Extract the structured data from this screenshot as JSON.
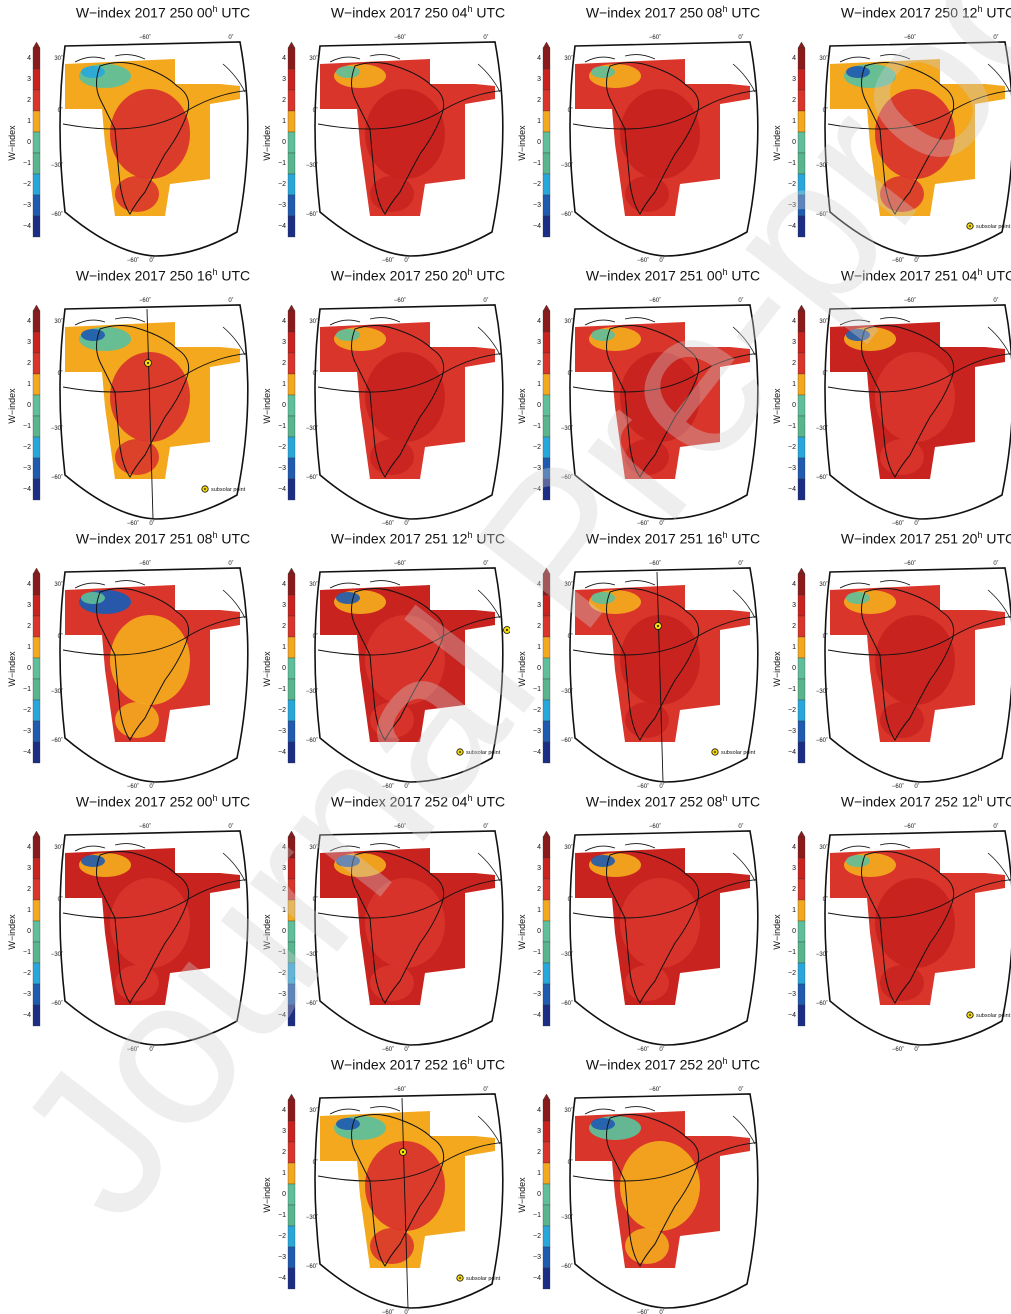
{
  "title_prefix": "W−index",
  "colorbar": {
    "label": "W−index",
    "ticks": [
      "4",
      "3",
      "2",
      "1",
      "0",
      "−1",
      "−2",
      "−3",
      "−4"
    ],
    "colors": [
      "#8b1a1a",
      "#c8231f",
      "#d9352b",
      "#f3a81e",
      "#5fbf9a",
      "#58b58e",
      "#28a7dd",
      "#1f5bb0",
      "#1c2d85"
    ]
  },
  "map_labels": {
    "lat": [
      "30˚",
      "0˚",
      "−30˚",
      "−60˚"
    ],
    "lon_top": [
      "−60˚",
      "0˚"
    ],
    "lon_bottom": [
      "−60˚",
      "0˚"
    ]
  },
  "subsolar_label": "subsolar point",
  "watermark": "Journal Pre-proof",
  "panels": [
    {
      "year": "2017",
      "doy": "250",
      "hour": "00",
      "unit": "h",
      "utc": "UTC",
      "subsolar": false,
      "subsolar_pos": null,
      "dominant": "orange-red"
    },
    {
      "year": "2017",
      "doy": "250",
      "hour": "04",
      "unit": "h",
      "utc": "UTC",
      "subsolar": false,
      "subsolar_pos": null,
      "dominant": "red"
    },
    {
      "year": "2017",
      "doy": "250",
      "hour": "08",
      "unit": "h",
      "utc": "UTC",
      "subsolar": false,
      "subsolar_pos": null,
      "dominant": "red"
    },
    {
      "year": "2017",
      "doy": "250",
      "hour": "12",
      "unit": "h",
      "utc": "UTC",
      "subsolar": true,
      "subsolar_pos": "edge",
      "dominant": "orange"
    },
    {
      "year": "2017",
      "doy": "250",
      "hour": "16",
      "unit": "h",
      "utc": "UTC",
      "subsolar": true,
      "subsolar_pos": "center",
      "dominant": "orange"
    },
    {
      "year": "2017",
      "doy": "250",
      "hour": "20",
      "unit": "h",
      "utc": "UTC",
      "subsolar": false,
      "subsolar_pos": null,
      "dominant": "red"
    },
    {
      "year": "2017",
      "doy": "251",
      "hour": "00",
      "unit": "h",
      "utc": "UTC",
      "subsolar": false,
      "subsolar_pos": null,
      "dominant": "red"
    },
    {
      "year": "2017",
      "doy": "251",
      "hour": "04",
      "unit": "h",
      "utc": "UTC",
      "subsolar": false,
      "subsolar_pos": null,
      "dominant": "darkred"
    },
    {
      "year": "2017",
      "doy": "251",
      "hour": "08",
      "unit": "h",
      "utc": "UTC",
      "subsolar": false,
      "subsolar_pos": null,
      "dominant": "orange-blue"
    },
    {
      "year": "2017",
      "doy": "251",
      "hour": "12",
      "unit": "h",
      "utc": "UTC",
      "subsolar": true,
      "subsolar_pos": "edge",
      "dominant": "darkred"
    },
    {
      "year": "2017",
      "doy": "251",
      "hour": "16",
      "unit": "h",
      "utc": "UTC",
      "subsolar": true,
      "subsolar_pos": "center",
      "dominant": "red"
    },
    {
      "year": "2017",
      "doy": "251",
      "hour": "20",
      "unit": "h",
      "utc": "UTC",
      "subsolar": false,
      "subsolar_pos": null,
      "dominant": "red"
    },
    {
      "year": "2017",
      "doy": "252",
      "hour": "00",
      "unit": "h",
      "utc": "UTC",
      "subsolar": false,
      "subsolar_pos": null,
      "dominant": "darkred"
    },
    {
      "year": "2017",
      "doy": "252",
      "hour": "04",
      "unit": "h",
      "utc": "UTC",
      "subsolar": false,
      "subsolar_pos": null,
      "dominant": "darkred"
    },
    {
      "year": "2017",
      "doy": "252",
      "hour": "08",
      "unit": "h",
      "utc": "UTC",
      "subsolar": false,
      "subsolar_pos": null,
      "dominant": "darkred"
    },
    {
      "year": "2017",
      "doy": "252",
      "hour": "12",
      "unit": "h",
      "utc": "UTC",
      "subsolar": true,
      "subsolar_pos": "edge",
      "dominant": "red"
    },
    {
      "year": "2017",
      "doy": "252",
      "hour": "16",
      "unit": "h",
      "utc": "UTC",
      "subsolar": true,
      "subsolar_pos": "center",
      "dominant": "orange"
    },
    {
      "year": "2017",
      "doy": "252",
      "hour": "20",
      "unit": "h",
      "utc": "UTC",
      "subsolar": false,
      "subsolar_pos": null,
      "dominant": "orange-teal"
    }
  ]
}
